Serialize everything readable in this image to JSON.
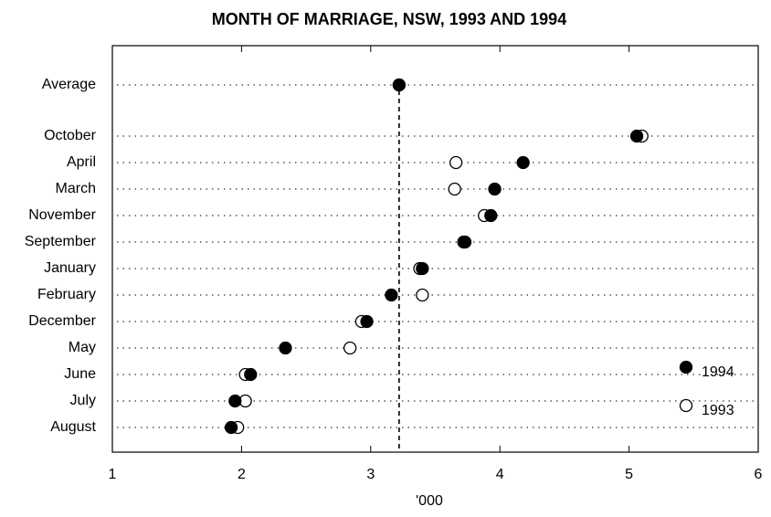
{
  "chart_data": {
    "type": "dot",
    "title": "MONTH OF MARRIAGE, NSW, 1993 AND 1994",
    "x_label": "'000",
    "categories": [
      "Average",
      "October",
      "April",
      "March",
      "November",
      "September",
      "January",
      "February",
      "December",
      "May",
      "June",
      "July",
      "August"
    ],
    "series": [
      {
        "name": "1993",
        "color": "#ffffff",
        "values": [
          3.22,
          5.1,
          3.66,
          3.65,
          3.88,
          3.72,
          3.38,
          3.4,
          2.93,
          2.84,
          2.03,
          2.03,
          1.97
        ]
      },
      {
        "name": "1994",
        "color": "#000000",
        "values": [
          3.22,
          5.06,
          4.18,
          3.96,
          3.93,
          3.73,
          3.4,
          3.16,
          2.97,
          2.34,
          2.07,
          1.95,
          1.92
        ]
      }
    ],
    "xlim": [
      1,
      6
    ],
    "xticks": [
      1,
      2,
      3,
      4,
      5,
      6
    ],
    "legend": "lower right"
  }
}
